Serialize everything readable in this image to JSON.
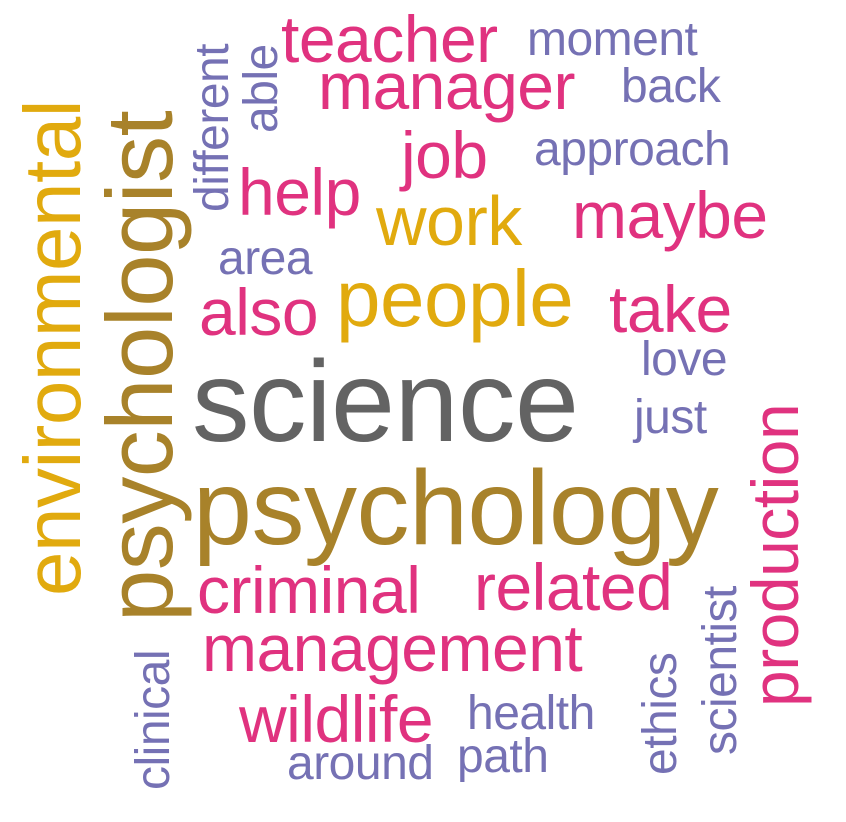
{
  "words": {
    "science": "science",
    "psychology": "psychology",
    "psychologist": "psychologist",
    "environmental": "environmental",
    "people": "people",
    "work": "work",
    "teacher": "teacher",
    "manager": "manager",
    "job": "job",
    "help": "help",
    "maybe": "maybe",
    "also": "also",
    "take": "take",
    "criminal": "criminal",
    "related": "related",
    "management": "management",
    "wildlife": "wildlife",
    "production": "production",
    "moment": "moment",
    "back": "back",
    "approach": "approach",
    "area": "area",
    "love": "love",
    "just": "just",
    "health": "health",
    "around": "around",
    "path": "path",
    "ethics": "ethics",
    "scientist": "scientist",
    "clinical": "clinical",
    "different": "different",
    "able": "able"
  },
  "colors": {
    "gray": "#636363",
    "brown": "#A8822A",
    "gold": "#E1AA0E",
    "pink": "#E0327F",
    "purple": "#7571B4"
  }
}
